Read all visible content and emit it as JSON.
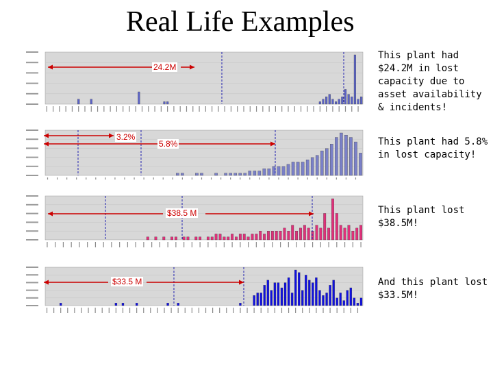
{
  "slide": {
    "title": "Real Life Examples"
  },
  "panels": [
    {
      "id": "chart-1",
      "annotation": "24.2M",
      "caption": "This plant had $24.2M in lost capacity due to asset availability & incidents!",
      "bar_color": "#5b63c8",
      "annotation_color": "#cc0000",
      "extra_annotation": "",
      "values": [
        0,
        0,
        0,
        0,
        0,
        0,
        0,
        0,
        0,
        0,
        2,
        0,
        0,
        0,
        2,
        0,
        0,
        0,
        0,
        0,
        0,
        0,
        0,
        0,
        0,
        0,
        0,
        0,
        0,
        5,
        0,
        0,
        0,
        0,
        0,
        0,
        0,
        1,
        1,
        0,
        0,
        0,
        0,
        0,
        0,
        0,
        0,
        0,
        0,
        0,
        0,
        0,
        0,
        0,
        0,
        0,
        0,
        0,
        0,
        0,
        0,
        0,
        0,
        0,
        0,
        0,
        0,
        0,
        0,
        0,
        0,
        0,
        0,
        0,
        0,
        0,
        0,
        0,
        0,
        0,
        0,
        0,
        0,
        0,
        0,
        0,
        1,
        2,
        3,
        4,
        2,
        1,
        2,
        3,
        6,
        4,
        3,
        20,
        2,
        3
      ]
    },
    {
      "id": "chart-2",
      "annotation": "5.8%",
      "extra_annotation": "3.2%",
      "caption": "This plant had 5.8% in lost capacity!",
      "bar_color": "#7a80c8",
      "annotation_color": "#cc0000",
      "values": [
        0,
        0,
        0,
        0,
        0,
        0,
        0,
        0,
        0,
        0,
        0,
        0,
        0,
        0,
        0,
        0,
        0,
        0,
        0,
        0,
        0,
        0,
        0,
        0,
        0,
        0,
        0,
        1,
        1,
        0,
        0,
        1,
        1,
        0,
        0,
        1,
        0,
        1,
        1,
        1,
        1,
        1,
        2,
        2,
        2,
        3,
        3,
        4,
        4,
        4,
        5,
        6,
        6,
        6,
        7,
        8,
        9,
        11,
        12,
        14,
        17,
        19,
        18,
        17,
        15,
        10
      ]
    },
    {
      "id": "chart-3",
      "annotation": "$38.5 M",
      "caption": "This plant lost $38.5M!",
      "bar_color": "#e0307a",
      "annotation_color": "#cc0000",
      "extra_annotation": "",
      "values": [
        0,
        0,
        0,
        0,
        0,
        0,
        0,
        0,
        0,
        0,
        0,
        0,
        0,
        0,
        0,
        0,
        0,
        0,
        0,
        0,
        0,
        0,
        0,
        0,
        0,
        1,
        0,
        1,
        0,
        1,
        0,
        1,
        1,
        0,
        1,
        1,
        0,
        1,
        1,
        0,
        1,
        1,
        2,
        2,
        1,
        1,
        2,
        1,
        2,
        2,
        1,
        2,
        2,
        3,
        2,
        3,
        3,
        3,
        3,
        4,
        3,
        5,
        3,
        4,
        5,
        4,
        3,
        5,
        4,
        9,
        4,
        14,
        9,
        5,
        4,
        5,
        3,
        4,
        5
      ]
    },
    {
      "id": "chart-4",
      "annotation": "$33.5 M",
      "caption": "And this plant lost $33.5M!",
      "bar_color": "#1010e0",
      "annotation_color": "#cc0000",
      "extra_annotation": "",
      "values": [
        0,
        0,
        0,
        0,
        1,
        0,
        0,
        0,
        0,
        0,
        0,
        0,
        0,
        0,
        0,
        0,
        0,
        0,
        0,
        0,
        1,
        0,
        1,
        0,
        0,
        0,
        1,
        0,
        0,
        0,
        0,
        0,
        0,
        0,
        0,
        1,
        0,
        0,
        1,
        0,
        0,
        0,
        0,
        0,
        0,
        0,
        0,
        0,
        0,
        0,
        0,
        0,
        0,
        0,
        0,
        0,
        1,
        0,
        0,
        0,
        4,
        5,
        5,
        8,
        10,
        6,
        9,
        9,
        7,
        9,
        11,
        5,
        14,
        13,
        6,
        12,
        10,
        9,
        11,
        6,
        4,
        5,
        8,
        10,
        3,
        5,
        2,
        6,
        7,
        3,
        1,
        3
      ]
    }
  ]
}
